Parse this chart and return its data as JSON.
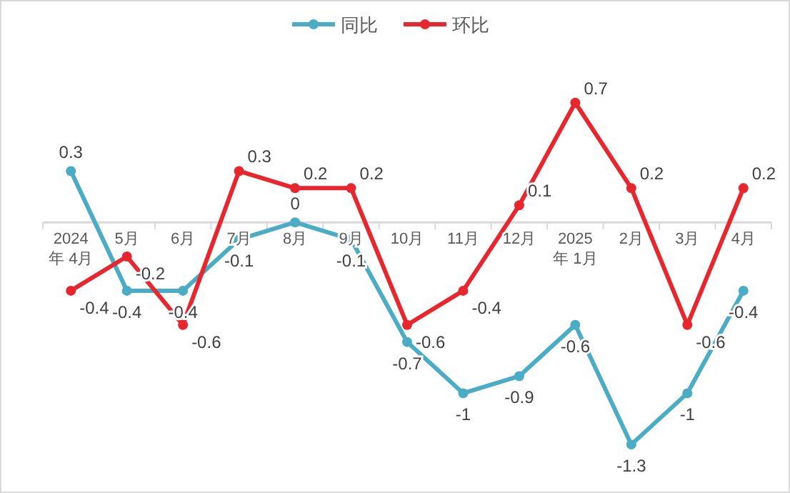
{
  "chart_data": {
    "type": "line",
    "categories": [
      "2024\n年 4月",
      "5月",
      "6月",
      "7月",
      "8月",
      "9月",
      "10月",
      "11月",
      "12月",
      "2025\n年 1月",
      "2月",
      "3月",
      "4月"
    ],
    "series": [
      {
        "name": "同比",
        "color": "#4bacc6",
        "values": [
          0.3,
          -0.4,
          -0.4,
          -0.1,
          0,
          -0.1,
          -0.7,
          -1,
          -0.9,
          -0.6,
          -1.3,
          -1,
          -0.4
        ]
      },
      {
        "name": "环比",
        "color": "#e8262e",
        "values": [
          -0.4,
          -0.2,
          -0.6,
          0.3,
          0.2,
          0.2,
          -0.6,
          -0.4,
          0.1,
          0.7,
          0.2,
          -0.6,
          0.2
        ]
      }
    ],
    "data_labels": true,
    "legend": "top",
    "marker": "circle",
    "line_style": "solid",
    "grid": false
  }
}
